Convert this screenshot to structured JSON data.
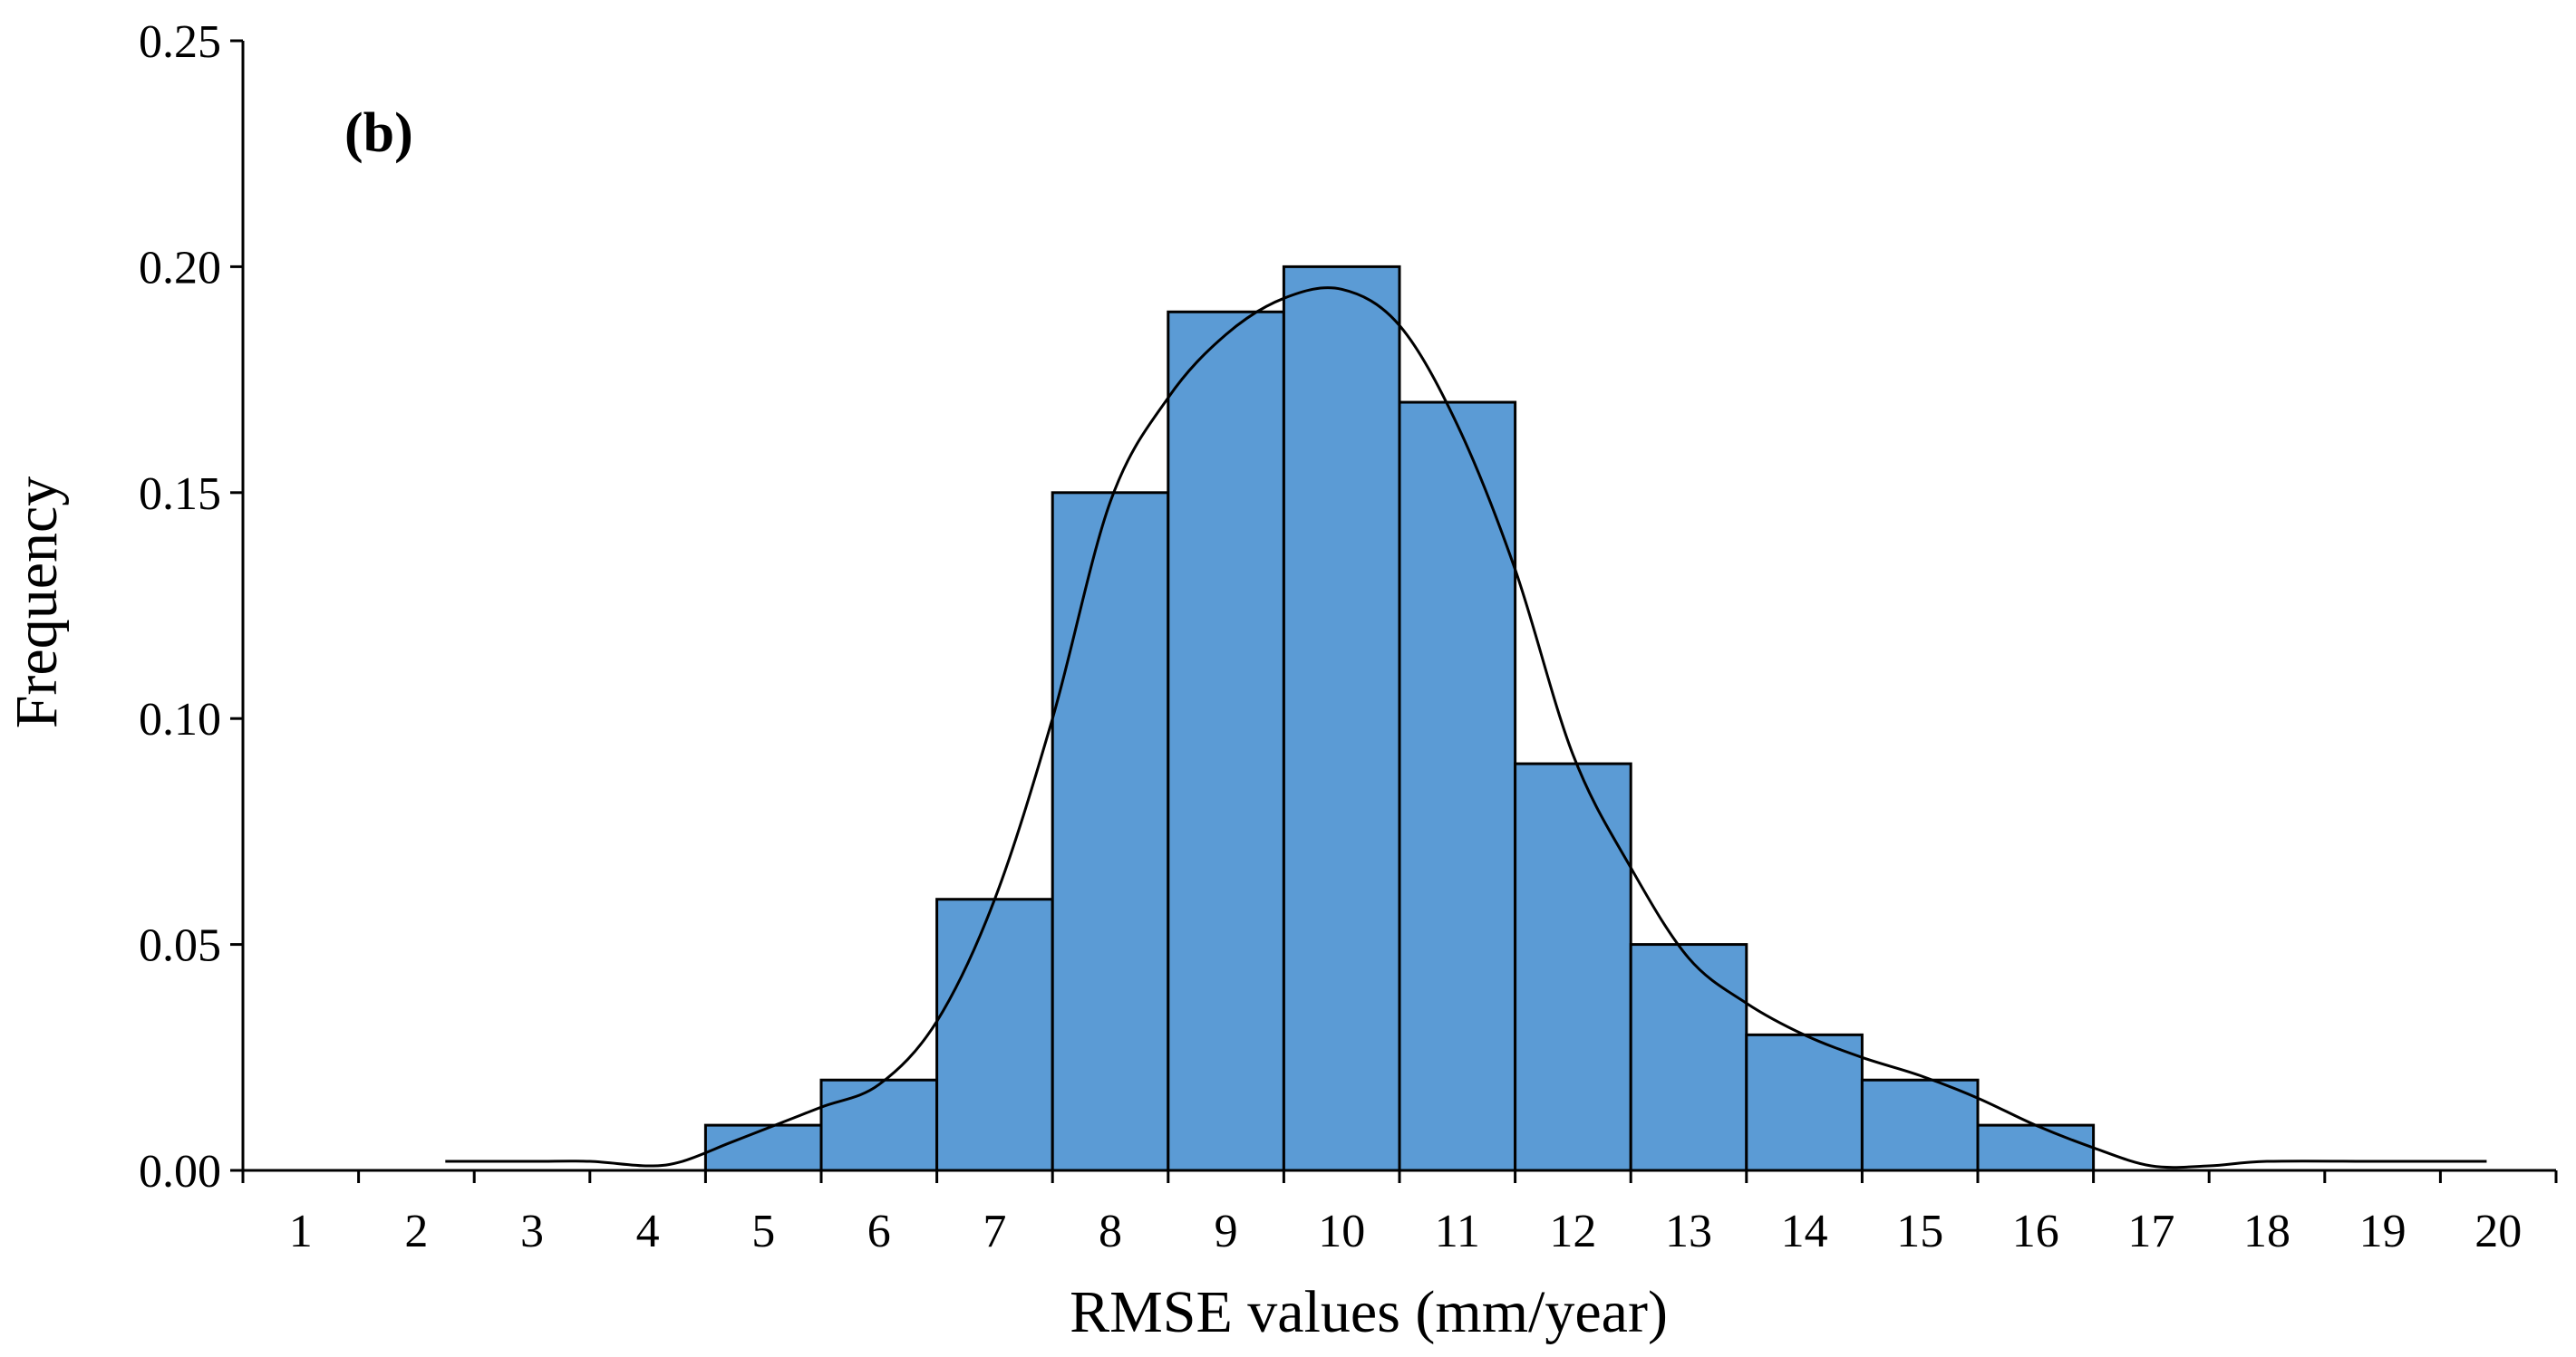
{
  "panel_label": "(b)",
  "chart_data": {
    "type": "bar",
    "subtype": "histogram",
    "xlabel": "RMSE values (mm/year)",
    "ylabel": "Frequency",
    "xlim": [
      0.5,
      20.5
    ],
    "ylim": [
      0,
      0.25
    ],
    "x_ticks": [
      1,
      2,
      3,
      4,
      5,
      6,
      7,
      8,
      9,
      10,
      11,
      12,
      13,
      14,
      15,
      16,
      17,
      18,
      19,
      20
    ],
    "y_ticks": [
      0.0,
      0.05,
      0.1,
      0.15,
      0.2,
      0.25
    ],
    "y_tick_labels": [
      "0.00",
      "0.05",
      "0.10",
      "0.15",
      "0.20",
      "0.25"
    ],
    "grid": false,
    "legend": "none",
    "bars": {
      "categories": [
        5,
        6,
        7,
        8,
        9,
        10,
        11,
        12,
        13,
        14,
        15,
        16
      ],
      "values": [
        0.01,
        0.02,
        0.06,
        0.15,
        0.19,
        0.2,
        0.17,
        0.09,
        0.05,
        0.03,
        0.02,
        0.01
      ],
      "color": "#5b9bd5",
      "edge_color": "#000000"
    },
    "density_curve": {
      "color": "#000000",
      "x": [
        2.25,
        3,
        3.5,
        4,
        4.3,
        4.7,
        5,
        5.5,
        6,
        6.5,
        7,
        7.5,
        8,
        8.5,
        9,
        9.5,
        10,
        10.5,
        11,
        11.5,
        12,
        12.5,
        13,
        13.5,
        14,
        14.5,
        15,
        15.5,
        16,
        16.5,
        17,
        17.5,
        18,
        19,
        19.9
      ],
      "y": [
        0.002,
        0.002,
        0.002,
        0.001,
        0.002,
        0.006,
        0.009,
        0.014,
        0.019,
        0.033,
        0.06,
        0.1,
        0.148,
        0.171,
        0.185,
        0.193,
        0.195,
        0.187,
        0.165,
        0.133,
        0.092,
        0.067,
        0.047,
        0.037,
        0.03,
        0.025,
        0.021,
        0.016,
        0.01,
        0.005,
        0.001,
        0.001,
        0.002,
        0.002,
        0.002
      ]
    }
  }
}
